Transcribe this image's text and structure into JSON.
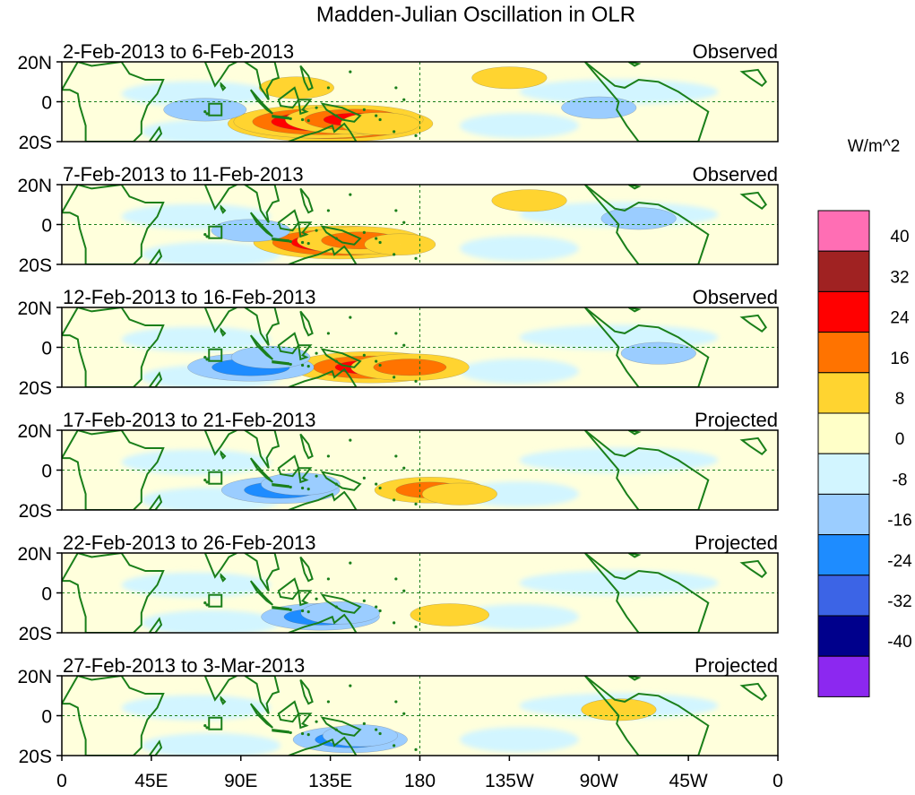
{
  "chart_data": {
    "type": "heatmap",
    "title": "Madden-Julian Oscillation in OLR",
    "colorbar": {
      "units": "W/m^2",
      "levels": [
        40,
        32,
        24,
        16,
        8,
        0,
        -8,
        -16,
        -24,
        -32,
        -40
      ],
      "colors": [
        "#ff6eb4",
        "#a02222",
        "#ff0000",
        "#ff7300",
        "#ffd430",
        "#ffffc8",
        "#d2f5ff",
        "#9bcdff",
        "#1e8cff",
        "#3c64e6",
        "#00008c",
        "#8c28f0"
      ]
    },
    "x_axis": {
      "ticks": [
        "0",
        "45E",
        "90E",
        "135E",
        "180",
        "135W",
        "90W",
        "45W",
        "0"
      ],
      "longitude_range": [
        0,
        360
      ]
    },
    "y_axis": {
      "ticks": [
        "20N",
        "0",
        "20S"
      ],
      "latitude_range": [
        -20,
        20
      ]
    },
    "panels": [
      {
        "date_range": "2-Feb-2013 to 6-Feb-2013",
        "status": "Observed",
        "anomalies": [
          {
            "lon": 135,
            "lat": -11,
            "value": 42
          },
          {
            "lon": 130,
            "lat": -10,
            "value": 34
          },
          {
            "lon": 147,
            "lat": -9,
            "value": 25
          },
          {
            "lon": 160,
            "lat": -11,
            "value": 10
          },
          {
            "lon": 118,
            "lat": 7,
            "value": 9
          },
          {
            "lon": 225,
            "lat": 12,
            "value": 9
          },
          {
            "lon": 72,
            "lat": -4,
            "value": -11
          },
          {
            "lon": 270,
            "lat": -3,
            "value": -9
          }
        ]
      },
      {
        "date_range": "7-Feb-2013 to 11-Feb-2013",
        "status": "Observed",
        "anomalies": [
          {
            "lon": 140,
            "lat": -9,
            "value": 34
          },
          {
            "lon": 150,
            "lat": -8,
            "value": 22
          },
          {
            "lon": 170,
            "lat": -10,
            "value": 8
          },
          {
            "lon": 95,
            "lat": -3,
            "value": -10
          },
          {
            "lon": 235,
            "lat": 12,
            "value": 9
          },
          {
            "lon": 290,
            "lat": 3,
            "value": -9
          }
        ]
      },
      {
        "date_range": "12-Feb-2013 to 16-Feb-2013",
        "status": "Observed",
        "anomalies": [
          {
            "lon": 155,
            "lat": -10,
            "value": 30
          },
          {
            "lon": 175,
            "lat": -10,
            "value": 20
          },
          {
            "lon": 95,
            "lat": -10,
            "value": -22
          },
          {
            "lon": 105,
            "lat": -5,
            "value": -10
          },
          {
            "lon": 300,
            "lat": -3,
            "value": -9
          }
        ]
      },
      {
        "date_range": "17-Feb-2013 to 21-Feb-2013",
        "status": "Projected",
        "anomalies": [
          {
            "lon": 185,
            "lat": -10,
            "value": 18
          },
          {
            "lon": 200,
            "lat": -12,
            "value": 9
          },
          {
            "lon": 110,
            "lat": -10,
            "value": -20
          },
          {
            "lon": 120,
            "lat": -7,
            "value": -10
          }
        ]
      },
      {
        "date_range": "22-Feb-2013 to 26-Feb-2013",
        "status": "Projected",
        "anomalies": [
          {
            "lon": 195,
            "lat": -11,
            "value": 10
          },
          {
            "lon": 130,
            "lat": -12,
            "value": -20
          },
          {
            "lon": 140,
            "lat": -10,
            "value": -10
          }
        ]
      },
      {
        "date_range": "27-Feb-2013 to 3-Mar-2013",
        "status": "Projected",
        "anomalies": [
          {
            "lon": 145,
            "lat": -12,
            "value": -19
          },
          {
            "lon": 150,
            "lat": -10,
            "value": -9
          },
          {
            "lon": 280,
            "lat": 3,
            "value": 9
          }
        ]
      }
    ]
  }
}
